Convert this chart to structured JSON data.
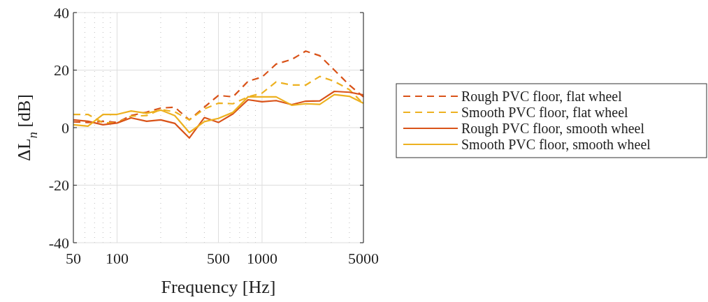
{
  "chart_data": {
    "type": "line",
    "xlabel": "Frequency [Hz]",
    "ylabel": "ΔL$_{n}$ [dB]",
    "log": "x",
    "x": [
      50,
      63,
      80,
      100,
      125,
      160,
      200,
      250,
      315,
      400,
      500,
      630,
      800,
      1000,
      1250,
      1600,
      2000,
      2500,
      3150,
      4000,
      5000
    ],
    "series": [
      {
        "name": "Rough PVC floor, flat wheel",
        "color": "#d95319",
        "line_style": "dashed",
        "values": [
          2.0,
          1.8,
          2.2,
          1.8,
          4.2,
          5.4,
          6.8,
          7.1,
          2.7,
          7.1,
          11.2,
          10.7,
          16.1,
          17.6,
          22.1,
          23.7,
          26.6,
          25,
          20,
          14.8,
          10.7
        ]
      },
      {
        "name": "Smooth PVC floor, flat wheel",
        "color": "#edb120",
        "line_style": "dashed",
        "values": [
          4.6,
          4.6,
          1.7,
          1.6,
          4.0,
          4.2,
          6.3,
          5.5,
          2.7,
          6.5,
          8.5,
          8.3,
          10.7,
          12.0,
          15.9,
          14.8,
          14.8,
          17.8,
          16.1,
          13.2,
          8.3
        ]
      },
      {
        "name": "Rough PVC floor, smooth wheel",
        "color": "#d95319",
        "line_style": "solid",
        "values": [
          2.7,
          2.2,
          1.0,
          1.6,
          3.4,
          2.2,
          2.7,
          1.5,
          -3.6,
          3.5,
          1.8,
          4.8,
          9.7,
          9.0,
          9.4,
          8.0,
          9.2,
          9.3,
          12.6,
          12.3,
          11.4
        ]
      },
      {
        "name": "Smooth PVC floor, smooth wheel",
        "color": "#edb120",
        "line_style": "solid",
        "values": [
          1.0,
          0.5,
          4.6,
          4.6,
          5.8,
          5.0,
          6.1,
          4.2,
          -1.7,
          2.1,
          3.2,
          5.3,
          10.7,
          10.7,
          10.7,
          7.8,
          8.3,
          8.1,
          11.5,
          10.9,
          8.5
        ]
      }
    ],
    "xlim": [
      50,
      5000
    ],
    "xticks": [
      50,
      100,
      500,
      1000,
      5000
    ],
    "ylim": [
      -40,
      40
    ],
    "yticks": [
      -40,
      -20,
      0,
      20,
      40
    ],
    "grid": true,
    "legend": "right"
  }
}
